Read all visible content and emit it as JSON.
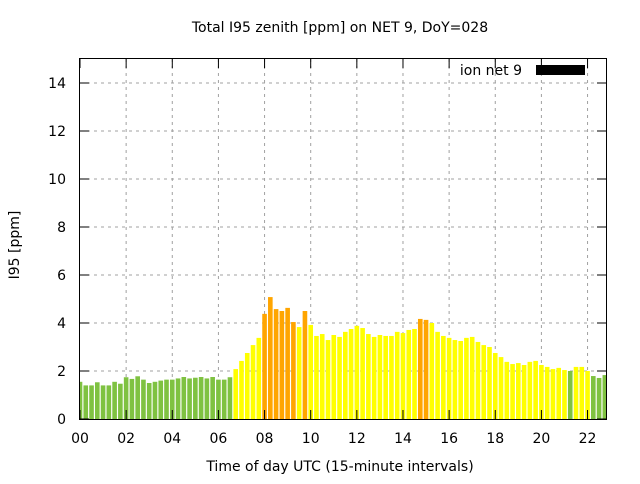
{
  "chart_data": {
    "type": "bar",
    "title": "Total I95 zenith [ppm] on NET 9, DoY=028",
    "xlabel": "Time of day UTC (15-minute intervals)",
    "ylabel": "I95 [ppm]",
    "xlim": [
      0,
      22.8
    ],
    "ylim": [
      0,
      15
    ],
    "grid": true,
    "legend": {
      "position": "top-right",
      "entries": [
        {
          "label": "ion net 9",
          "color": "#000000"
        }
      ]
    },
    "xticks": [
      {
        "value": 0,
        "label": "00"
      },
      {
        "value": 2,
        "label": "02"
      },
      {
        "value": 4,
        "label": "04"
      },
      {
        "value": 6,
        "label": "06"
      },
      {
        "value": 8,
        "label": "08"
      },
      {
        "value": 10,
        "label": "10"
      },
      {
        "value": 12,
        "label": "12"
      },
      {
        "value": 14,
        "label": "14"
      },
      {
        "value": 16,
        "label": "16"
      },
      {
        "value": 18,
        "label": "18"
      },
      {
        "value": 20,
        "label": "20"
      },
      {
        "value": 22,
        "label": "22"
      }
    ],
    "yticks": [
      0,
      2,
      4,
      6,
      8,
      10,
      12,
      14
    ],
    "interval_hours": 0.25,
    "colors": {
      "green": "#7fc241",
      "yellow": "#ffff00",
      "orange": "#ffa500"
    },
    "series": [
      {
        "name": "ion net 9",
        "values": [
          1.55,
          1.4,
          1.4,
          1.53,
          1.4,
          1.4,
          1.55,
          1.47,
          1.74,
          1.67,
          1.78,
          1.64,
          1.5,
          1.55,
          1.6,
          1.64,
          1.64,
          1.69,
          1.75,
          1.69,
          1.72,
          1.75,
          1.69,
          1.75,
          1.64,
          1.64,
          1.74,
          2.08,
          2.42,
          2.75,
          3.08,
          3.38,
          4.38,
          5.08,
          4.58,
          4.5,
          4.63,
          4.04,
          3.83,
          4.5,
          3.92,
          3.46,
          3.54,
          3.29,
          3.5,
          3.42,
          3.63,
          3.75,
          3.88,
          3.79,
          3.54,
          3.42,
          3.5,
          3.46,
          3.46,
          3.63,
          3.58,
          3.71,
          3.75,
          4.17,
          4.13,
          4.0,
          3.63,
          3.46,
          3.38,
          3.29,
          3.25,
          3.38,
          3.42,
          3.21,
          3.08,
          3.0,
          2.75,
          2.58,
          2.38,
          2.29,
          2.33,
          2.25,
          2.38,
          2.42,
          2.25,
          2.17,
          2.08,
          2.13,
          2.04,
          2.0,
          2.17,
          2.17,
          2.0,
          1.79,
          1.71,
          1.83
        ],
        "levels": [
          "green",
          "green",
          "green",
          "green",
          "green",
          "green",
          "green",
          "green",
          "green",
          "green",
          "green",
          "green",
          "green",
          "green",
          "green",
          "green",
          "green",
          "green",
          "green",
          "green",
          "green",
          "green",
          "green",
          "green",
          "green",
          "green",
          "green",
          "yellow",
          "yellow",
          "yellow",
          "yellow",
          "yellow",
          "orange",
          "orange",
          "orange",
          "orange",
          "orange",
          "orange",
          "yellow",
          "orange",
          "yellow",
          "yellow",
          "yellow",
          "yellow",
          "yellow",
          "yellow",
          "yellow",
          "yellow",
          "yellow",
          "yellow",
          "yellow",
          "yellow",
          "yellow",
          "yellow",
          "yellow",
          "yellow",
          "yellow",
          "yellow",
          "yellow",
          "orange",
          "orange",
          "yellow",
          "yellow",
          "yellow",
          "yellow",
          "yellow",
          "yellow",
          "yellow",
          "yellow",
          "yellow",
          "yellow",
          "yellow",
          "yellow",
          "yellow",
          "yellow",
          "yellow",
          "yellow",
          "yellow",
          "yellow",
          "yellow",
          "yellow",
          "yellow",
          "yellow",
          "yellow",
          "yellow",
          "green",
          "yellow",
          "yellow",
          "yellow",
          "green",
          "green",
          "green"
        ]
      }
    ]
  }
}
